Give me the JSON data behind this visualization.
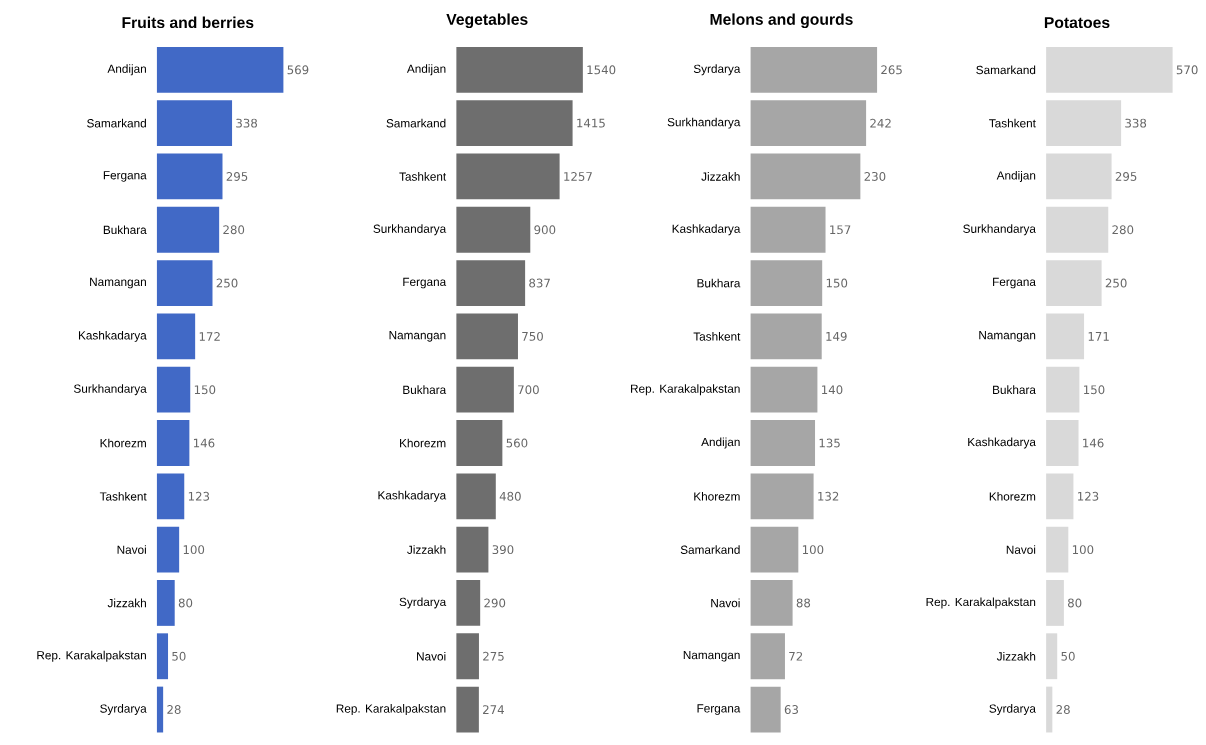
{
  "chart_data": [
    {
      "type": "bar",
      "orientation": "horizontal",
      "title": "Fruits and berries",
      "categories": [
        "Andijan",
        "Samarkand",
        "Fergana",
        "Bukhara",
        "Namangan",
        "Kashkadarya",
        "Surkhandarya",
        "Khorezm",
        "Tashkent",
        "Navoi",
        "Jizzakh",
        "Rep. Karakalpakstan",
        "Syrdarya"
      ],
      "values": [
        569,
        338,
        295,
        280,
        250,
        172,
        150,
        146,
        123,
        100,
        80,
        50,
        28
      ],
      "color": "#4169c6",
      "data_labels": true,
      "tick_labels": "y"
    },
    {
      "type": "bar",
      "orientation": "horizontal",
      "title": "Vegetables",
      "categories": [
        "Andijan",
        "Samarkand",
        "Tashkent",
        "Surkhandarya",
        "Fergana",
        "Namangan",
        "Bukhara",
        "Khorezm",
        "Kashkadarya",
        "Jizzakh",
        "Syrdarya",
        "Navoi",
        "Rep. Karakalpakstan"
      ],
      "values": [
        1540,
        1415,
        1257,
        900,
        837,
        750,
        700,
        560,
        480,
        390,
        290,
        275,
        274
      ],
      "color": "#6e6e6e",
      "data_labels": true,
      "tick_labels": "y"
    },
    {
      "type": "bar",
      "orientation": "horizontal",
      "title": "Melons and gourds",
      "categories": [
        "Syrdarya",
        "Surkhandarya",
        "Jizzakh",
        "Kashkadarya",
        "Bukhara",
        "Tashkent",
        "Rep. Karakalpakstan",
        "Andijan",
        "Khorezm",
        "Samarkand",
        "Navoi",
        "Namangan",
        "Fergana"
      ],
      "values": [
        265,
        242,
        230,
        157,
        150,
        149,
        140,
        135,
        132,
        100,
        88,
        72,
        63
      ],
      "color": "#a6a6a6",
      "data_labels": true,
      "tick_labels": "y"
    },
    {
      "type": "bar",
      "orientation": "horizontal",
      "title": "Potatoes",
      "categories": [
        "Samarkand",
        "Tashkent",
        "Andijan",
        "Surkhandarya",
        "Fergana",
        "Namangan",
        "Bukhara",
        "Kashkadarya",
        "Khorezm",
        "Navoi",
        "Rep. Karakalpakstan",
        "Jizzakh",
        "Syrdarya"
      ],
      "values": [
        570,
        338,
        295,
        280,
        250,
        171,
        150,
        146,
        123,
        100,
        80,
        50,
        28
      ],
      "color": "#d9d9d9",
      "data_labels": true,
      "tick_labels": "y"
    }
  ]
}
